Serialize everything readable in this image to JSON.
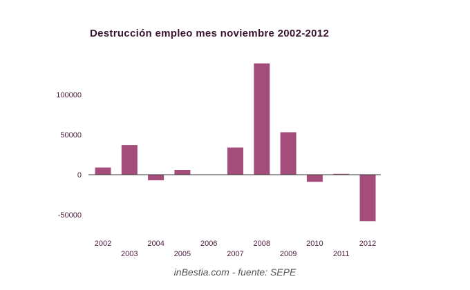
{
  "colors": {
    "bar": "#a54d7a",
    "axis": "#333333",
    "label_text": "#4a1a3a",
    "title_text": "#3a1530",
    "source_text": "#555555"
  },
  "chart_data": {
    "type": "bar",
    "title": "Destrucción empleo mes noviembre 2002-2012",
    "xlabel": "",
    "ylabel": "",
    "categories": [
      "2002",
      "2003",
      "2004",
      "2005",
      "2006",
      "2007",
      "2008",
      "2009",
      "2010",
      "2011",
      "2012"
    ],
    "values": [
      9000,
      37000,
      -7000,
      6000,
      0,
      34000,
      139000,
      53000,
      -9000,
      1000,
      -58000
    ],
    "yticks": [
      100000,
      50000,
      0,
      -50000
    ],
    "ylim": [
      -70000,
      145000
    ],
    "grid": false,
    "legend": "none"
  },
  "footer": {
    "source": "inBestia.com - fuente: SEPE"
  }
}
